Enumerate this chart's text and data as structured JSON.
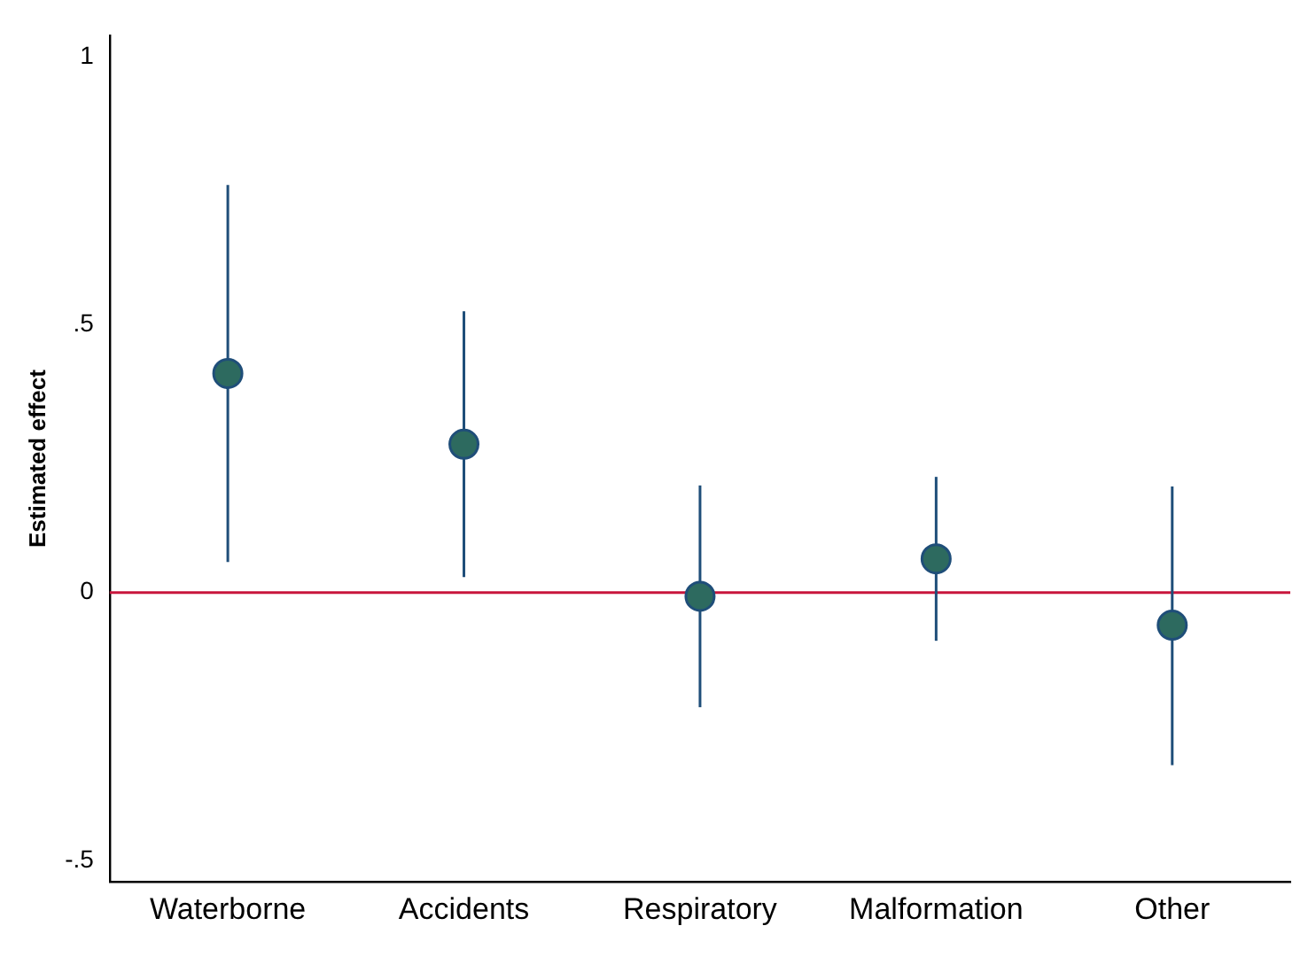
{
  "chart_data": {
    "type": "scatter",
    "ylabel": "Estimated effect",
    "categories": [
      "Waterborne",
      "Accidents",
      "Respiratory",
      "Malformation",
      "Other"
    ],
    "series": [
      {
        "color": "#2d6a5f",
        "values": [
          0.409,
          0.277,
          -0.007,
          0.063,
          -0.061
        ],
        "errors": [
          [
            0.057,
            0.761
          ],
          [
            0.029,
            0.525
          ],
          [
            -0.214,
            0.2
          ],
          [
            -0.09,
            0.216
          ],
          [
            -0.322,
            0.198
          ]
        ]
      }
    ],
    "ylim": [
      -0.54,
      1.04
    ],
    "yticks": [
      {
        "value": -0.5,
        "label": "-.5"
      },
      0,
      {
        "value": 0.5,
        "label": ".5"
      },
      1
    ],
    "ref_lines": [
      {
        "axis": "y",
        "value": 0,
        "color": "#c8163c"
      }
    ],
    "marker": "circle",
    "grid": false,
    "legend": false
  }
}
